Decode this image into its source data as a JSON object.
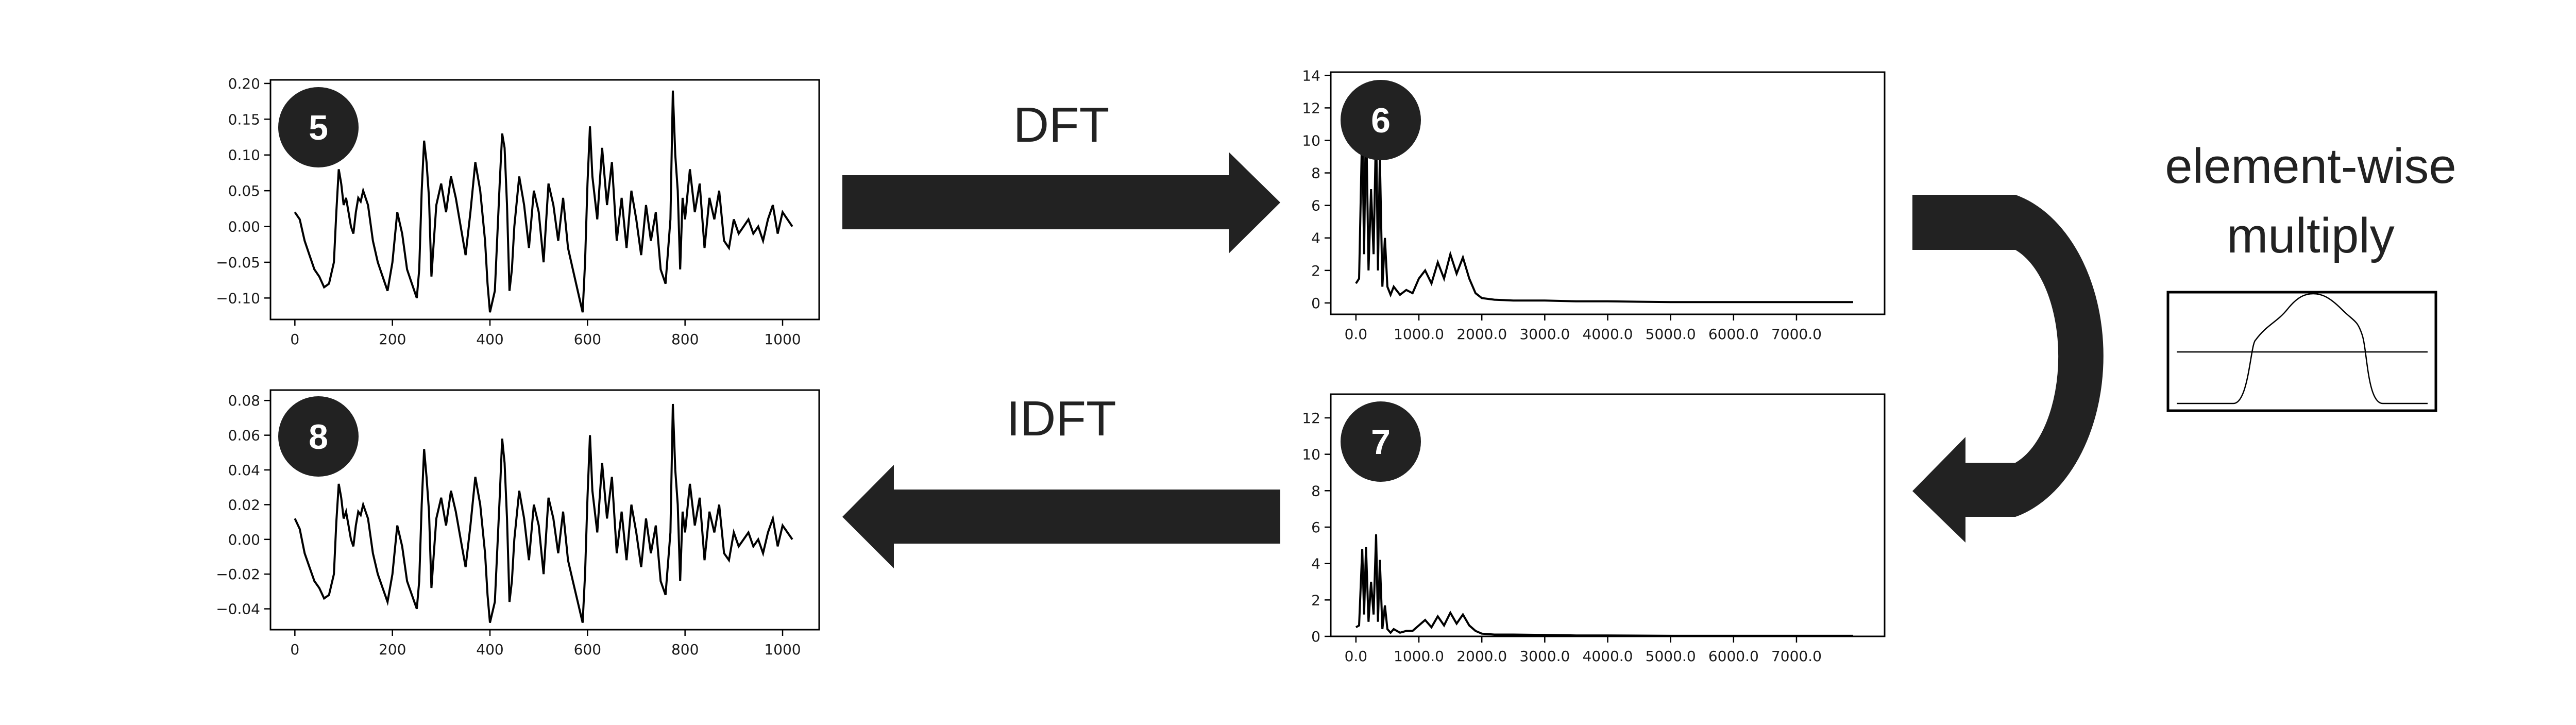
{
  "labels": {
    "dft": "DFT",
    "idft": "IDFT",
    "op_line1": "element-wise",
    "op_line2": "multiply"
  },
  "colors": {
    "ink": "#222222",
    "line": "#000000",
    "background": "#ffffff"
  },
  "chart_data": [
    {
      "id": "plot5",
      "badge": "5",
      "type": "line",
      "xticks": [
        "0",
        "200",
        "400",
        "600",
        "800",
        "1000"
      ],
      "xtick_values": [
        0,
        200,
        400,
        600,
        800,
        1000
      ],
      "yticks": [
        "−0.10",
        "−0.05",
        "0.00",
        "0.05",
        "0.10",
        "0.15",
        "0.20"
      ],
      "ytick_values": [
        -0.1,
        -0.05,
        0.0,
        0.05,
        0.1,
        0.15,
        0.2
      ],
      "xlim": [
        -50,
        1075
      ],
      "ylim": [
        -0.13,
        0.205
      ],
      "x": [
        0,
        10,
        20,
        30,
        40,
        50,
        60,
        70,
        80,
        85,
        90,
        95,
        100,
        105,
        110,
        115,
        120,
        125,
        130,
        135,
        140,
        150,
        160,
        170,
        180,
        190,
        200,
        210,
        220,
        230,
        240,
        250,
        255,
        260,
        265,
        270,
        275,
        280,
        285,
        290,
        300,
        310,
        320,
        330,
        340,
        350,
        360,
        370,
        380,
        390,
        395,
        400,
        410,
        420,
        425,
        430,
        435,
        440,
        445,
        450,
        460,
        470,
        480,
        490,
        500,
        510,
        520,
        530,
        540,
        550,
        560,
        570,
        580,
        590,
        595,
        600,
        605,
        610,
        620,
        630,
        640,
        650,
        660,
        670,
        680,
        690,
        700,
        710,
        720,
        730,
        740,
        750,
        760,
        770,
        775,
        780,
        785,
        790,
        795,
        800,
        810,
        820,
        830,
        840,
        850,
        860,
        870,
        880,
        890,
        900,
        910,
        920,
        930,
        940,
        950,
        960,
        970,
        980,
        990,
        1000,
        1010,
        1020
      ],
      "y": [
        0.02,
        0.01,
        -0.02,
        -0.04,
        -0.06,
        -0.07,
        -0.085,
        -0.08,
        -0.05,
        0.02,
        0.08,
        0.06,
        0.03,
        0.04,
        0.02,
        0.0,
        -0.01,
        0.02,
        0.04,
        0.035,
        0.05,
        0.03,
        -0.02,
        -0.05,
        -0.07,
        -0.09,
        -0.05,
        0.02,
        -0.01,
        -0.06,
        -0.08,
        -0.1,
        -0.06,
        0.05,
        0.12,
        0.09,
        0.04,
        -0.07,
        -0.02,
        0.03,
        0.06,
        0.02,
        0.07,
        0.04,
        0.0,
        -0.04,
        0.02,
        0.09,
        0.05,
        -0.02,
        -0.08,
        -0.12,
        -0.09,
        0.06,
        0.13,
        0.11,
        0.03,
        -0.09,
        -0.06,
        0.0,
        0.07,
        0.03,
        -0.03,
        0.05,
        0.02,
        -0.05,
        0.06,
        0.03,
        -0.02,
        0.04,
        -0.03,
        -0.06,
        -0.09,
        -0.12,
        -0.05,
        0.06,
        0.14,
        0.07,
        0.01,
        0.11,
        0.03,
        0.09,
        -0.02,
        0.04,
        -0.03,
        0.05,
        0.01,
        -0.04,
        0.03,
        -0.02,
        0.02,
        -0.06,
        -0.08,
        0.01,
        0.19,
        0.1,
        0.05,
        -0.06,
        0.04,
        0.01,
        0.08,
        0.02,
        0.06,
        -0.03,
        0.04,
        0.01,
        0.05,
        -0.02,
        -0.03,
        0.01,
        -0.01,
        0.0,
        0.01,
        -0.01,
        0.0,
        -0.02,
        0.01,
        0.03,
        -0.01,
        0.02,
        0.01,
        0.0
      ]
    },
    {
      "id": "plot8",
      "badge": "8",
      "type": "line",
      "xticks": [
        "0",
        "200",
        "400",
        "600",
        "800",
        "1000"
      ],
      "xtick_values": [
        0,
        200,
        400,
        600,
        800,
        1000
      ],
      "yticks": [
        "−0.04",
        "−0.02",
        "0.00",
        "0.02",
        "0.04",
        "0.06",
        "0.08"
      ],
      "ytick_values": [
        -0.04,
        -0.02,
        0.0,
        0.02,
        0.04,
        0.06,
        0.08
      ],
      "xlim": [
        -50,
        1075
      ],
      "ylim": [
        -0.052,
        0.086
      ],
      "x": [
        0,
        10,
        20,
        30,
        40,
        50,
        60,
        70,
        80,
        85,
        90,
        95,
        100,
        105,
        110,
        115,
        120,
        125,
        130,
        135,
        140,
        150,
        160,
        170,
        180,
        190,
        200,
        210,
        220,
        230,
        240,
        250,
        255,
        260,
        265,
        270,
        275,
        280,
        285,
        290,
        300,
        310,
        320,
        330,
        340,
        350,
        360,
        370,
        380,
        390,
        395,
        400,
        410,
        420,
        425,
        430,
        435,
        440,
        445,
        450,
        460,
        470,
        480,
        490,
        500,
        510,
        520,
        530,
        540,
        550,
        560,
        570,
        580,
        590,
        595,
        600,
        605,
        610,
        620,
        630,
        640,
        650,
        660,
        670,
        680,
        690,
        700,
        710,
        720,
        730,
        740,
        750,
        760,
        770,
        775,
        780,
        785,
        790,
        795,
        800,
        810,
        820,
        830,
        840,
        850,
        860,
        870,
        880,
        890,
        900,
        910,
        920,
        930,
        940,
        950,
        960,
        970,
        980,
        990,
        1000,
        1010,
        1020
      ],
      "y": [
        0.012,
        0.006,
        -0.008,
        -0.016,
        -0.024,
        -0.028,
        -0.034,
        -0.032,
        -0.02,
        0.01,
        0.032,
        0.024,
        0.012,
        0.016,
        0.008,
        0.0,
        -0.004,
        0.008,
        0.016,
        0.014,
        0.02,
        0.012,
        -0.008,
        -0.02,
        -0.028,
        -0.036,
        -0.02,
        0.008,
        -0.004,
        -0.024,
        -0.032,
        -0.04,
        -0.024,
        0.02,
        0.052,
        0.036,
        0.016,
        -0.028,
        -0.008,
        0.012,
        0.024,
        0.008,
        0.028,
        0.016,
        0.0,
        -0.016,
        0.008,
        0.036,
        0.02,
        -0.008,
        -0.032,
        -0.048,
        -0.036,
        0.024,
        0.058,
        0.044,
        0.012,
        -0.036,
        -0.024,
        0.0,
        0.028,
        0.012,
        -0.012,
        0.02,
        0.008,
        -0.02,
        0.024,
        0.012,
        -0.008,
        0.016,
        -0.012,
        -0.024,
        -0.036,
        -0.048,
        -0.02,
        0.024,
        0.06,
        0.028,
        0.004,
        0.044,
        0.012,
        0.036,
        -0.008,
        0.016,
        -0.012,
        0.02,
        0.004,
        -0.016,
        0.012,
        -0.008,
        0.008,
        -0.024,
        -0.032,
        0.004,
        0.078,
        0.04,
        0.02,
        -0.024,
        0.016,
        0.004,
        0.032,
        0.008,
        0.024,
        -0.012,
        0.016,
        0.004,
        0.02,
        -0.008,
        -0.012,
        0.004,
        -0.004,
        0.0,
        0.004,
        -0.004,
        0.0,
        -0.008,
        0.004,
        0.012,
        -0.004,
        0.008,
        0.004,
        0.0
      ]
    },
    {
      "id": "plot6",
      "badge": "6",
      "type": "line",
      "xticks": [
        "0.0",
        "1000.0",
        "2000.0",
        "3000.0",
        "4000.0",
        "5000.0",
        "6000.0",
        "7000.0"
      ],
      "xtick_values": [
        0,
        1000,
        2000,
        3000,
        4000,
        5000,
        6000,
        7000
      ],
      "yticks": [
        "0",
        "2",
        "4",
        "6",
        "8",
        "10",
        "12",
        "14"
      ],
      "ytick_values": [
        0,
        2,
        4,
        6,
        8,
        10,
        12,
        14
      ],
      "xlim": [
        -400,
        8400
      ],
      "ylim": [
        -0.7,
        14.2
      ],
      "x": [
        0,
        50,
        100,
        130,
        160,
        200,
        240,
        280,
        320,
        350,
        380,
        420,
        460,
        500,
        550,
        600,
        700,
        800,
        900,
        1000,
        1100,
        1200,
        1300,
        1400,
        1500,
        1600,
        1700,
        1800,
        1900,
        2000,
        2200,
        2500,
        3000,
        3500,
        4000,
        5000,
        6000,
        7000,
        7900
      ],
      "y": [
        1.2,
        1.5,
        11,
        3,
        12,
        2,
        7,
        3,
        11,
        2,
        9,
        1,
        4,
        1,
        0.5,
        1,
        0.5,
        0.8,
        0.6,
        1.5,
        2,
        1.2,
        2.5,
        1.5,
        3,
        1.8,
        2.8,
        1.5,
        0.6,
        0.3,
        0.2,
        0.15,
        0.15,
        0.1,
        0.1,
        0.05,
        0.05,
        0.05,
        0.05
      ]
    },
    {
      "id": "plot7",
      "badge": "7",
      "type": "line",
      "xticks": [
        "0.0",
        "1000.0",
        "2000.0",
        "3000.0",
        "4000.0",
        "5000.0",
        "6000.0",
        "7000.0"
      ],
      "xtick_values": [
        0,
        1000,
        2000,
        3000,
        4000,
        5000,
        6000,
        7000
      ],
      "yticks": [
        "0",
        "2",
        "4",
        "6",
        "8",
        "10",
        "12"
      ],
      "ytick_values": [
        0,
        2,
        4,
        6,
        8,
        10,
        12
      ],
      "xlim": [
        -400,
        8400
      ],
      "ylim": [
        0,
        13.3
      ],
      "x": [
        0,
        50,
        100,
        130,
        160,
        200,
        240,
        280,
        320,
        350,
        380,
        420,
        460,
        500,
        550,
        600,
        700,
        800,
        900,
        1000,
        1100,
        1200,
        1300,
        1400,
        1500,
        1600,
        1700,
        1800,
        1900,
        2000,
        2200,
        2500,
        3000,
        3500,
        4000,
        5000,
        6000,
        7000,
        7900
      ],
      "y": [
        0.5,
        0.6,
        4.8,
        1.2,
        4.9,
        0.8,
        3.0,
        1.2,
        5.6,
        0.8,
        4.2,
        0.4,
        1.7,
        0.4,
        0.2,
        0.4,
        0.2,
        0.3,
        0.3,
        0.6,
        0.9,
        0.5,
        1.1,
        0.6,
        1.3,
        0.7,
        1.2,
        0.6,
        0.3,
        0.15,
        0.1,
        0.1,
        0.08,
        0.05,
        0.05,
        0.03,
        0.03,
        0.03,
        0.03
      ]
    }
  ]
}
